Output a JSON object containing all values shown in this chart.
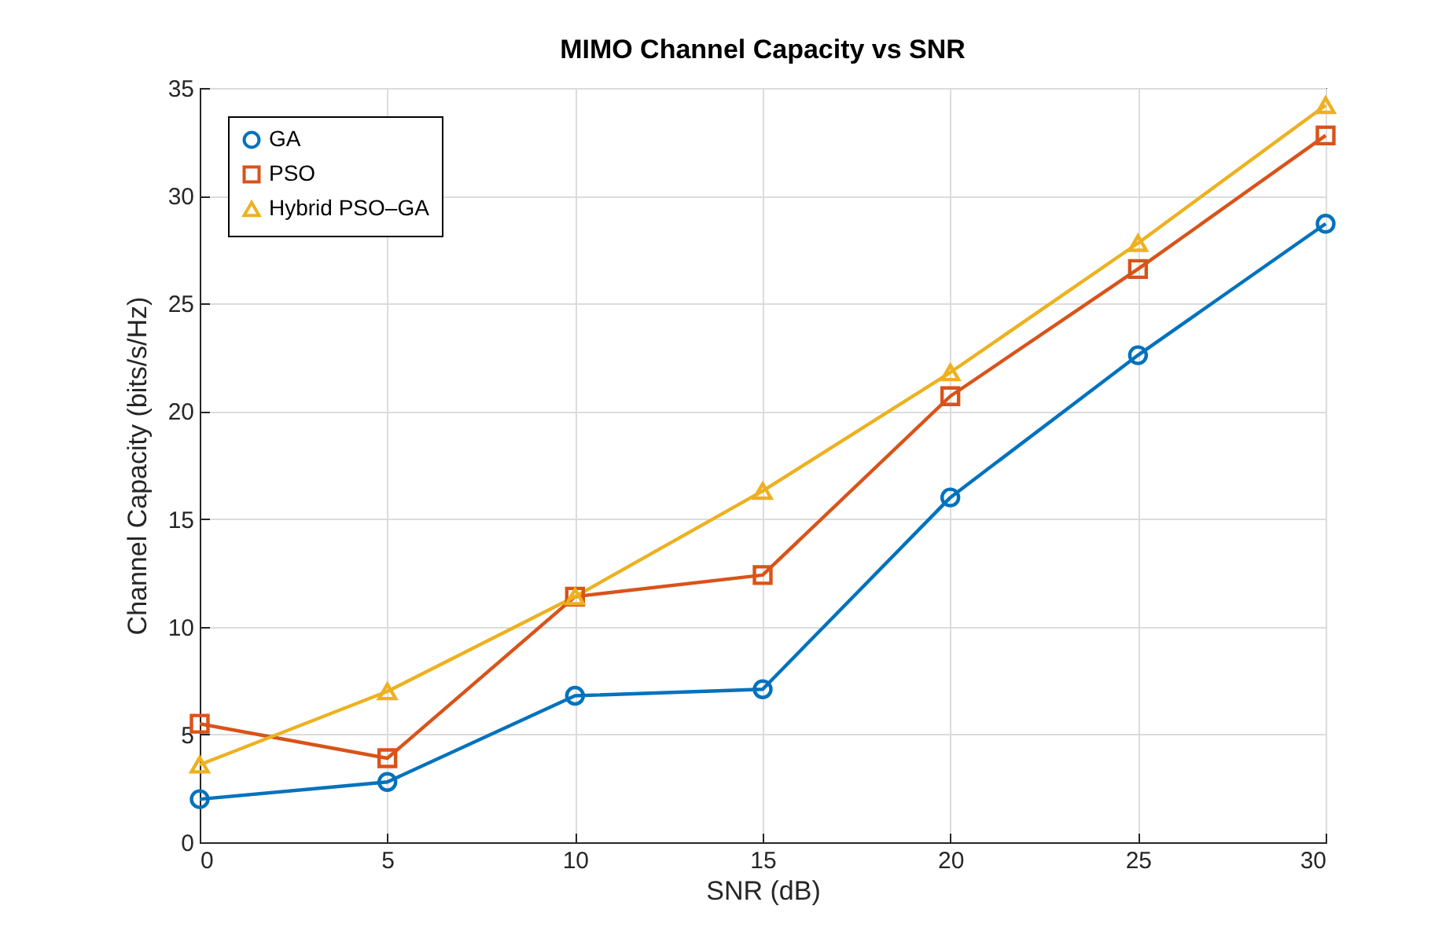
{
  "chart_data": {
    "type": "line",
    "title": "MIMO Channel Capacity vs SNR",
    "xlabel": "SNR (dB)",
    "ylabel": "Channel Capacity (bits/s/Hz)",
    "x": [
      0,
      5,
      10,
      15,
      20,
      25,
      30
    ],
    "series": [
      {
        "name": "GA",
        "color": "#0072bd",
        "marker": "circle",
        "values": [
          2.0,
          2.8,
          6.8,
          7.1,
          16.0,
          22.6,
          28.7
        ]
      },
      {
        "name": "PSO",
        "color": "#d95319",
        "marker": "square",
        "values": [
          5.5,
          3.9,
          11.4,
          12.4,
          20.7,
          26.6,
          32.8
        ]
      },
      {
        "name": "Hybrid PSO–GA",
        "color": "#edb120",
        "marker": "triangle",
        "values": [
          3.6,
          7.0,
          11.4,
          16.3,
          21.8,
          27.8,
          34.2
        ]
      }
    ],
    "xlim": [
      0,
      30
    ],
    "xticks": [
      0,
      5,
      10,
      15,
      20,
      25,
      30
    ],
    "ylim": [
      0,
      35
    ],
    "yticks": [
      0,
      5,
      10,
      15,
      20,
      25,
      30,
      35
    ],
    "grid": true,
    "legend": "top left",
    "line_style": "solid"
  }
}
